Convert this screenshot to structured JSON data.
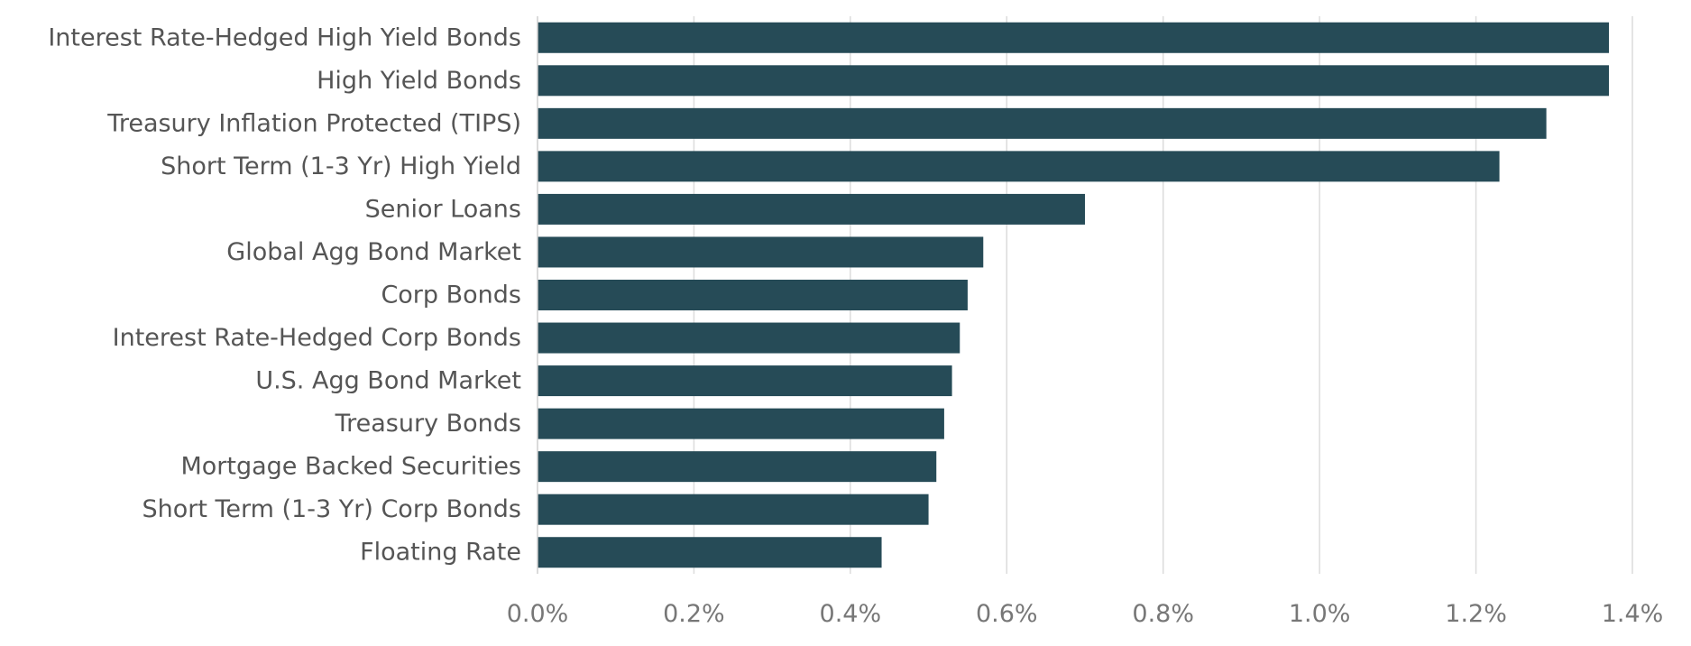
{
  "chart_data": {
    "type": "bar",
    "orientation": "horizontal",
    "title": "",
    "xlabel": "",
    "ylabel": "",
    "categories": [
      "Interest Rate-Hedged High Yield Bonds",
      "High Yield Bonds",
      "Treasury Inflation Protected (TIPS)",
      "Short Term (1-3 Yr) High Yield",
      "Senior Loans",
      "Global Agg Bond Market",
      "Corp Bonds",
      "Interest Rate-Hedged Corp Bonds",
      "U.S. Agg Bond Market",
      "Treasury Bonds",
      "Mortgage Backed Securities",
      "Short Term (1-3 Yr) Corp Bonds",
      "Floating Rate"
    ],
    "values": [
      1.37,
      1.37,
      1.29,
      1.23,
      0.7,
      0.57,
      0.55,
      0.54,
      0.53,
      0.52,
      0.51,
      0.5,
      0.44
    ],
    "unit": "%",
    "xlim": [
      0,
      1.4
    ],
    "x_ticks": [
      0,
      0.2,
      0.4,
      0.6,
      0.8,
      1.0,
      1.2,
      1.4
    ],
    "x_tick_labels": [
      "0.0%",
      "0.2%",
      "0.4%",
      "0.6%",
      "0.8%",
      "1.0%",
      "1.2%",
      "1.4%"
    ],
    "grid": "vertical",
    "legend": "none",
    "bar_color": "#264b57"
  }
}
